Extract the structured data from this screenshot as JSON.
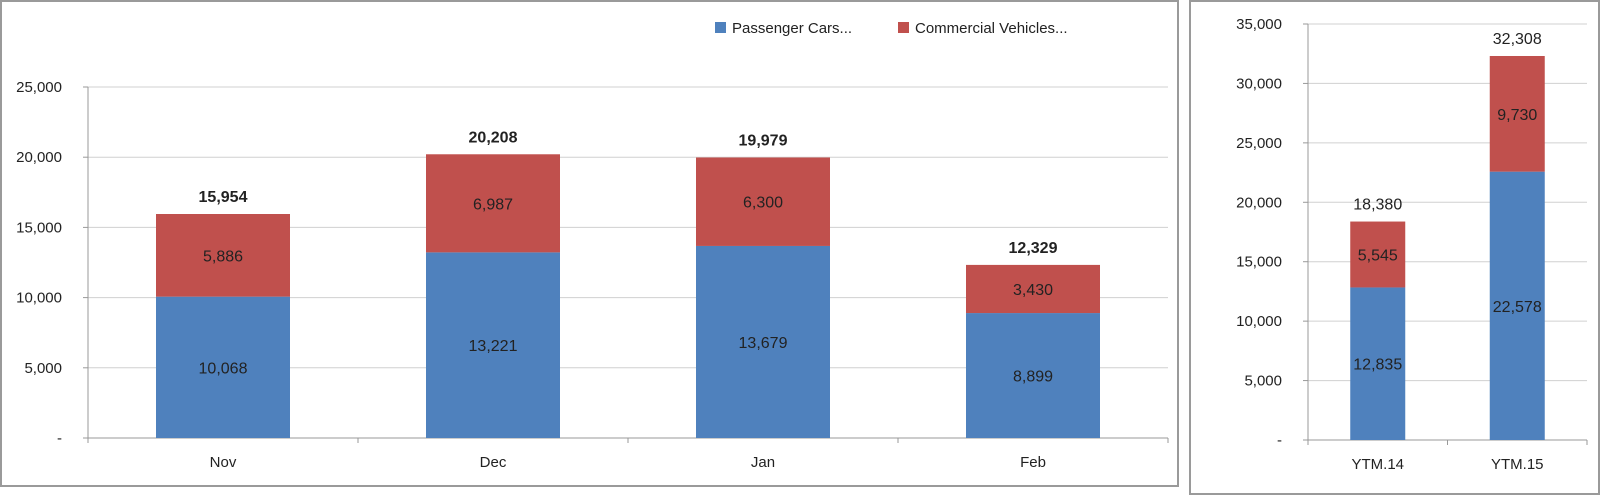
{
  "chart_data": [
    {
      "type": "bar",
      "stacked": true,
      "title": "",
      "xlabel": "",
      "ylabel": "",
      "categories": [
        "Nov",
        "Dec",
        "Jan",
        "Feb"
      ],
      "series": [
        {
          "name": "Passenger Cars...",
          "color": "#4f81bd",
          "values": [
            10068,
            13221,
            13679,
            8899
          ],
          "labels": [
            "10,068",
            "13,221",
            "13,679",
            "8,899"
          ]
        },
        {
          "name": "Commercial Vehicles...",
          "color": "#c0504d",
          "values": [
            5886,
            6987,
            6300,
            3430
          ],
          "labels": [
            "5,886",
            "6,987",
            "6,300",
            "3,430"
          ]
        }
      ],
      "totals": [
        15954,
        20208,
        19979,
        12329
      ],
      "total_labels": [
        "15,954",
        "20,208",
        "19,979",
        "12,329"
      ],
      "ylim": [
        0,
        25000
      ],
      "yticks": [
        0,
        5000,
        10000,
        15000,
        20000,
        25000
      ],
      "ytick_labels": [
        "-",
        "5,000",
        "10,000",
        "15,000",
        "20,000",
        "25,000"
      ],
      "grid": true,
      "legend": {
        "placement": "top-right",
        "entries": [
          "Passenger Cars...",
          "Commercial Vehicles..."
        ]
      }
    },
    {
      "type": "bar",
      "stacked": true,
      "title": "",
      "xlabel": "",
      "ylabel": "",
      "categories": [
        "YTM.14",
        "YTM.15"
      ],
      "series": [
        {
          "name": "Passenger Cars...",
          "color": "#4f81bd",
          "values": [
            12835,
            22578
          ],
          "labels": [
            "12,835",
            "22,578"
          ]
        },
        {
          "name": "Commercial Vehicles...",
          "color": "#c0504d",
          "values": [
            5545,
            9730
          ],
          "labels": [
            "5,545",
            "9,730"
          ]
        }
      ],
      "totals": [
        18380,
        32308
      ],
      "total_labels": [
        "18,380",
        "32,308"
      ],
      "ylim": [
        0,
        35000
      ],
      "yticks": [
        0,
        5000,
        10000,
        15000,
        20000,
        25000,
        30000,
        35000
      ],
      "ytick_labels": [
        "-",
        "5,000",
        "10,000",
        "15,000",
        "20,000",
        "25,000",
        "30,000",
        "35,000"
      ],
      "grid": true
    }
  ]
}
